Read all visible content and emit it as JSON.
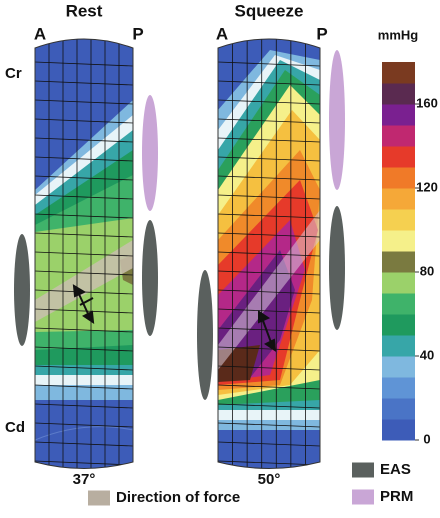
{
  "panels": [
    {
      "title": "Rest",
      "left": "A",
      "right": "P",
      "angle": "37°"
    },
    {
      "title": "Squeeze",
      "left": "A",
      "right": "P",
      "angle": "50°"
    }
  ],
  "axis": {
    "top": "Cr",
    "bottom": "Cd"
  },
  "colorbar": {
    "label": "mmHg",
    "range": [
      0,
      180
    ],
    "ticks": [
      0,
      40,
      80,
      120,
      160
    ]
  },
  "legend": [
    {
      "label": "EAS",
      "color": "#5a605e"
    },
    {
      "label": "PRM",
      "color": "#c9a6d6"
    },
    {
      "label": "Direction of force",
      "color": "#b8aea0"
    }
  ]
}
